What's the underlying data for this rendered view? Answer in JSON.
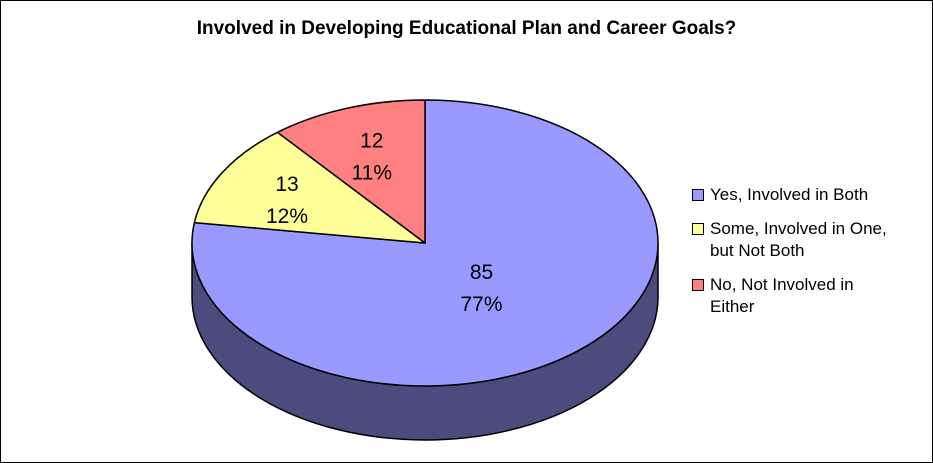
{
  "chart_data": {
    "type": "pie",
    "title": "Involved in Developing Educational Plan and Career Goals?",
    "slices": [
      {
        "label": "Yes, Involved in Both",
        "value": 85,
        "percent_label": "77%",
        "color": "#9999FF",
        "side_color": "#4B4B7D"
      },
      {
        "label": "Some, Involved in One, but Not Both",
        "value": 13,
        "percent_label": "12%",
        "color": "#FFFF99",
        "side_color": "#7D7D4B"
      },
      {
        "label": "No, Not Involved in Either",
        "value": 12,
        "percent_label": "11%",
        "color": "#FF8080",
        "side_color": "#7D3F3F"
      }
    ],
    "legend_position": "right",
    "three_d": true
  },
  "legend": {
    "items": [
      {
        "lines": [
          "Yes, Involved in Both"
        ],
        "color": "#9999FF"
      },
      {
        "lines": [
          "Some, Involved in One,",
          "but Not Both"
        ],
        "color": "#FFFF99"
      },
      {
        "lines": [
          "No, Not Involved in",
          "Either"
        ],
        "color": "#FF8080"
      }
    ]
  }
}
